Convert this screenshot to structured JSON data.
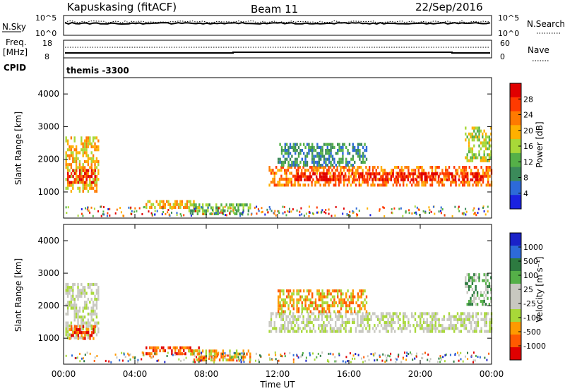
{
  "header": {
    "title": "Kapuskasing (fitACF)",
    "beam": "Beam 11",
    "date": "22/Sep/2016"
  },
  "top_panels": {
    "nsky_label": "N.Sky",
    "nsky_ticks": [
      "10^5",
      "10^0"
    ],
    "nsearch_label": "N.Search",
    "nsearch_ticks": [
      "10^5",
      "10^0"
    ],
    "freq_label": "Freq.",
    "freq_unit": "[MHz]",
    "freq_ticks": [
      "18",
      "8"
    ],
    "nave_label": "Nave",
    "nave_ticks": [
      "60",
      "0"
    ],
    "cpid_label": "CPID",
    "cpid_value": "themis -3300"
  },
  "colors": {
    "power": [
      "#1a22e0",
      "#2d6ad8",
      "#3b8a5a",
      "#55b048",
      "#a8d838",
      "#ffb000",
      "#ff7a00",
      "#ff3a00",
      "#e00000"
    ],
    "velocity": [
      "#e00000",
      "#ff5a00",
      "#ff9a00",
      "#a8d838",
      "#c8c8c0",
      "#c8c8c0",
      "#55b048",
      "#2d7a40",
      "#2d6ad8",
      "#1a22c8"
    ]
  },
  "chart_data": [
    {
      "type": "heatmap",
      "ylabel": "Slant Range [km]",
      "ylim": [
        200,
        4500
      ],
      "yticks": [
        "1000",
        "2000",
        "3000",
        "4000"
      ],
      "xlim_hours": [
        0,
        24
      ],
      "colorbar_label": "Power [dB]",
      "colorbar_ticks": [
        "4",
        "8",
        "12",
        "16",
        "20",
        "24",
        "28"
      ],
      "regions": [
        {
          "t": [
            0.1,
            2.0
          ],
          "range": [
            1000,
            2700
          ],
          "level": 5
        },
        {
          "t": [
            0.2,
            1.8
          ],
          "range": [
            1300,
            1700
          ],
          "level": 8
        },
        {
          "t": [
            4.6,
            7.6
          ],
          "range": [
            550,
            750
          ],
          "level": 5
        },
        {
          "t": [
            7.0,
            10.5
          ],
          "range": [
            300,
            650
          ],
          "level": 3
        },
        {
          "t": [
            11.5,
            24.0
          ],
          "range": [
            1200,
            1800
          ],
          "level": 6
        },
        {
          "t": [
            13.0,
            23.5
          ],
          "range": [
            1350,
            1600
          ],
          "level": 8
        },
        {
          "t": [
            12.0,
            17.0
          ],
          "range": [
            1800,
            2500
          ],
          "level": 2
        },
        {
          "t": [
            22.5,
            24.0
          ],
          "range": [
            2000,
            3000
          ],
          "level": 4
        }
      ]
    },
    {
      "type": "heatmap",
      "ylabel": "Slant Range [km]",
      "ylim": [
        200,
        4500
      ],
      "yticks": [
        "1000",
        "2000",
        "3000",
        "4000"
      ],
      "xlim_hours": [
        0,
        24
      ],
      "xticks": [
        "00:00",
        "04:00",
        "08:00",
        "12:00",
        "16:00",
        "20:00",
        "00:00"
      ],
      "xlabel": "Time UT",
      "colorbar_label": "Velocity [m s⁻¹]",
      "colorbar_ticks": [
        "1000",
        "500",
        "100",
        "25",
        "-25",
        "-100",
        "-500",
        "-1000"
      ],
      "regions": [
        {
          "t": [
            0.1,
            2.0
          ],
          "range": [
            1000,
            2700
          ],
          "level": 4
        },
        {
          "t": [
            0.3,
            1.8
          ],
          "range": [
            1000,
            1400
          ],
          "level": 1
        },
        {
          "t": [
            4.6,
            7.6
          ],
          "range": [
            550,
            750
          ],
          "level": 1
        },
        {
          "t": [
            7.0,
            10.5
          ],
          "range": [
            300,
            650
          ],
          "level": 2
        },
        {
          "t": [
            11.5,
            24.0
          ],
          "range": [
            1200,
            1800
          ],
          "level": 4
        },
        {
          "t": [
            12.0,
            17.0
          ],
          "range": [
            1800,
            2500
          ],
          "level": 2
        },
        {
          "t": [
            22.5,
            24.0
          ],
          "range": [
            2000,
            3000
          ],
          "level": 6
        }
      ]
    }
  ]
}
